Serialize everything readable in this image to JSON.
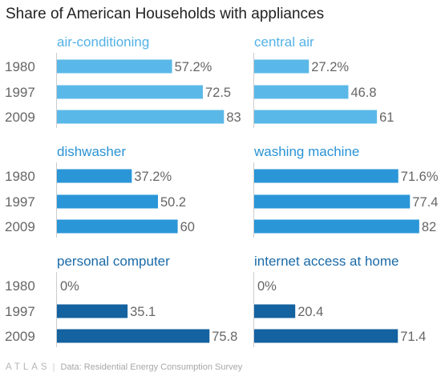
{
  "title": "Share of American Households with appliances",
  "footer": {
    "brand": "ATLAS",
    "separator": "|",
    "source": "Data: Residential Energy Consumption Survey"
  },
  "chart_data": {
    "type": "bar",
    "orientation": "horizontal",
    "title": "Share of American Households with appliances",
    "categories": [
      "1980",
      "1997",
      "2009"
    ],
    "xlim": [
      0,
      100
    ],
    "grid": false,
    "panels": [
      {
        "name": "air-conditioning",
        "values": [
          57.2,
          72.5,
          83
        ],
        "labels": [
          "57.2%",
          "72.5",
          "83"
        ],
        "color": "#5ab8e8"
      },
      {
        "name": "central air",
        "values": [
          27.2,
          46.8,
          61
        ],
        "labels": [
          "27.2%",
          "46.8",
          "61"
        ],
        "color": "#5ab8e8"
      },
      {
        "name": "dishwasher",
        "values": [
          37.2,
          50.2,
          60
        ],
        "labels": [
          "37.2%",
          "50.2",
          "60"
        ],
        "color": "#2a96d8"
      },
      {
        "name": "washing machine",
        "values": [
          71.6,
          77.4,
          82
        ],
        "labels": [
          "71.6%",
          "77.4",
          "82"
        ],
        "color": "#2a96d8"
      },
      {
        "name": "personal computer",
        "values": [
          0,
          35.1,
          75.8
        ],
        "labels": [
          "0%",
          "35.1",
          "75.8"
        ],
        "color": "#1462a0"
      },
      {
        "name": "internet access at home",
        "values": [
          0,
          20.4,
          71.4
        ],
        "labels": [
          "0%",
          "20.4",
          "71.4"
        ],
        "color": "#1462a0"
      }
    ],
    "colors": {
      "light": "#5ab8e8",
      "medium": "#2a96d8",
      "dark": "#1462a0",
      "title_light": "#53b1e6",
      "title_medium": "#2a92d5",
      "title_dark": "#1a6aa8",
      "axis": "#cccccc",
      "text": "#666666"
    }
  }
}
